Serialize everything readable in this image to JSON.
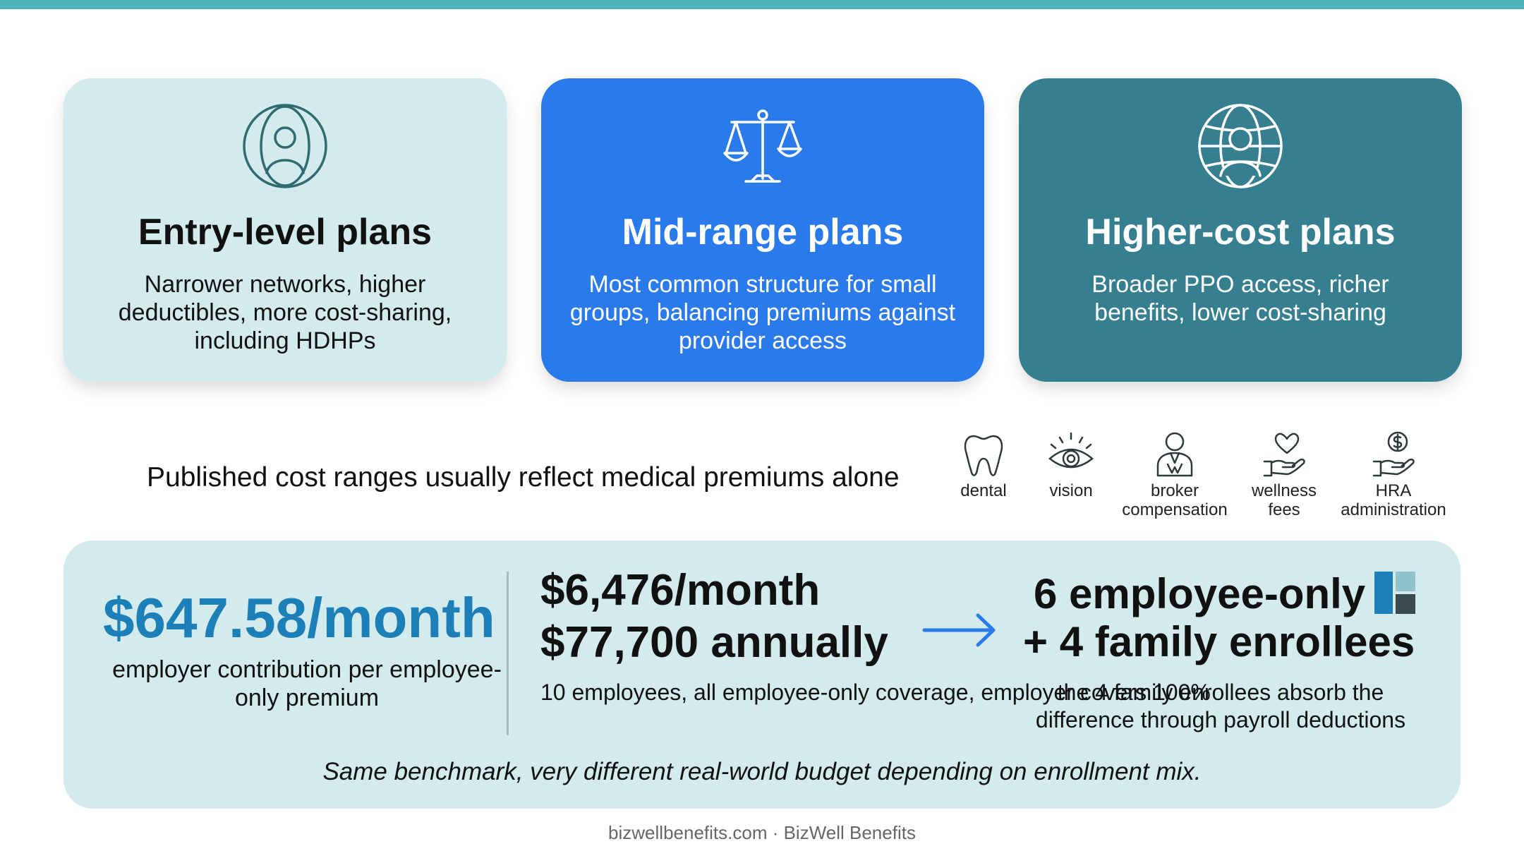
{
  "cards": [
    {
      "title": "Entry-level plans",
      "description": "Narrower networks, higher deductibles, more cost-sharing, including HDHPs",
      "icon": "person-in-circle-icon"
    },
    {
      "title": "Mid-range plans",
      "description": "Most common structure for small groups, balancing premiums against provider access",
      "icon": "balance-scale-icon"
    },
    {
      "title": "Higher-cost plans",
      "description": "Broader PPO access, richer benefits, lower cost-sharing",
      "icon": "globe-person-icon"
    }
  ],
  "published_note": "Published cost ranges usually reflect medical premiums alone",
  "extras": [
    {
      "label": "dental",
      "icon": "tooth-icon"
    },
    {
      "label": "vision",
      "icon": "eye-icon"
    },
    {
      "label": "broker compensation",
      "icon": "broker-icon"
    },
    {
      "label": "wellness fees",
      "icon": "heart-hand-icon"
    },
    {
      "label": "HRA administration",
      "icon": "dollar-hand-icon"
    }
  ],
  "stats": {
    "contribution": {
      "value": "$647.58/month",
      "description": "employer contribution per employee-only premium"
    },
    "total": {
      "monthly": "$6,476/month",
      "annual": "$77,700 annually",
      "description": "10 employees, all employee-only coverage, employer covers 100%"
    },
    "mix": {
      "line1": "6 employee-only",
      "line2": "+ 4 family enrollees",
      "description": "the 4 family enrollees absorb the difference through payroll deductions"
    },
    "note": "Same benchmark, very different real-world budget depending on enrollment mix."
  },
  "footer": "bizwellbenefits.com · BizWell Benefits",
  "colors": {
    "top_bar": "#4fb3b8",
    "card_light": "#d3ebec",
    "card_blue": "#2b7aec",
    "card_teal": "#367f91",
    "stat_accent": "#1d7fb8",
    "arrow": "#2b7aec"
  }
}
